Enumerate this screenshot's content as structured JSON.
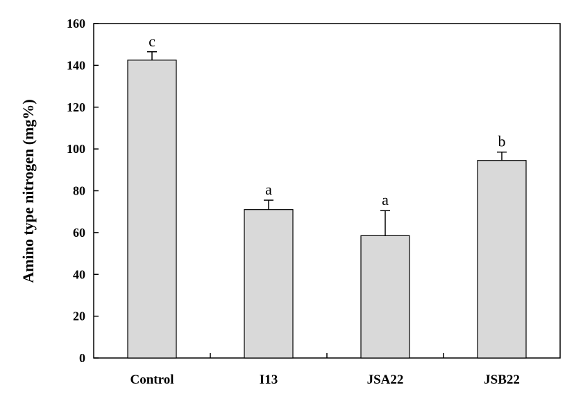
{
  "chart_data": {
    "type": "bar",
    "categories": [
      "Control",
      "I13",
      "JSA22",
      "JSB22"
    ],
    "values": [
      142.5,
      71,
      58.5,
      94.5
    ],
    "errors": [
      4,
      4.5,
      12,
      4
    ],
    "significance": [
      "c",
      "a",
      "a",
      "b"
    ],
    "title": "",
    "xlabel": "",
    "ylabel": "Amino type nitrogen (mg%)",
    "ylim": [
      0,
      160
    ],
    "yticks": [
      0,
      20,
      40,
      60,
      80,
      100,
      120,
      140,
      160
    ],
    "grid": false,
    "bar_color": "#d9d9d9",
    "bar_edge_color": "#000000"
  }
}
